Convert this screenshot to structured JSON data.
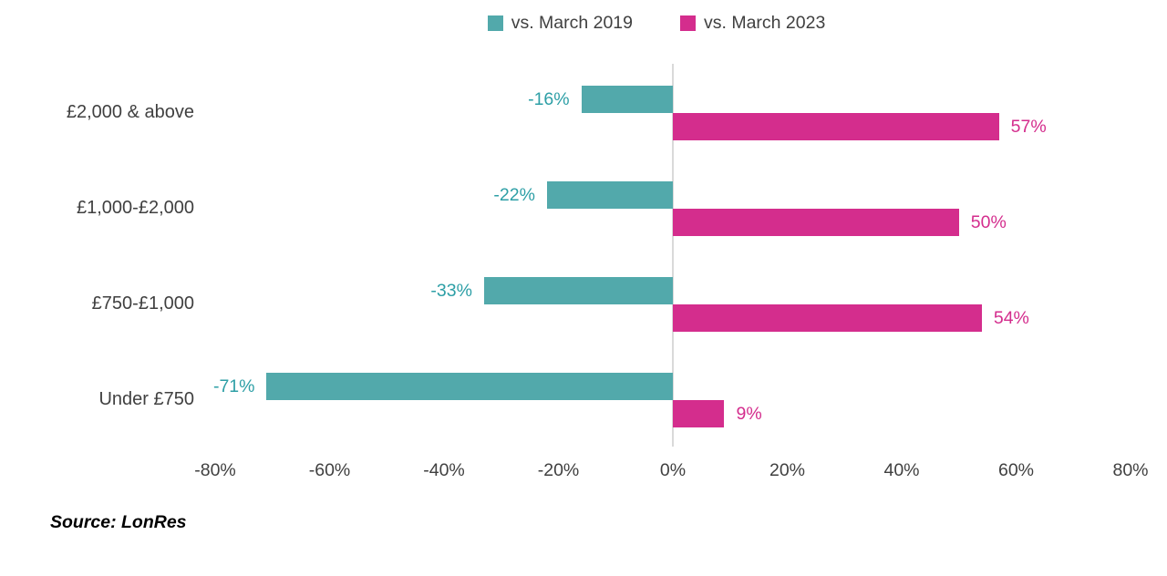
{
  "chart_data": {
    "type": "bar",
    "orientation": "horizontal",
    "categories": [
      "£2,000 & above",
      "£1,000-£2,000",
      "£750-£1,000",
      "Under £750"
    ],
    "series": [
      {
        "name": "vs. March 2019",
        "color": "#52A9AB",
        "label_color": "#2D9FA6",
        "values": [
          -16,
          -22,
          -33,
          -71
        ],
        "labels": [
          "-16%",
          "-22%",
          "-33%",
          "-71%"
        ]
      },
      {
        "name": "vs. March 2023",
        "color": "#D42D8D",
        "label_color": "#D42D8D",
        "values": [
          57,
          50,
          54,
          9
        ],
        "labels": [
          "57%",
          "50%",
          "54%",
          "9%"
        ]
      }
    ],
    "xticks": [
      -80,
      -60,
      -40,
      -20,
      0,
      20,
      40,
      60,
      80
    ],
    "xtick_labels": [
      "-80%",
      "-60%",
      "-40%",
      "-20%",
      "0%",
      "20%",
      "40%",
      "60%",
      "80%"
    ],
    "xlim": [
      -80,
      80
    ],
    "grid": false,
    "legend_position": "top",
    "zero_line_color": "#D9D9D9",
    "axis_text_color": "#404040"
  },
  "source": {
    "text": "Source: LonRes"
  }
}
